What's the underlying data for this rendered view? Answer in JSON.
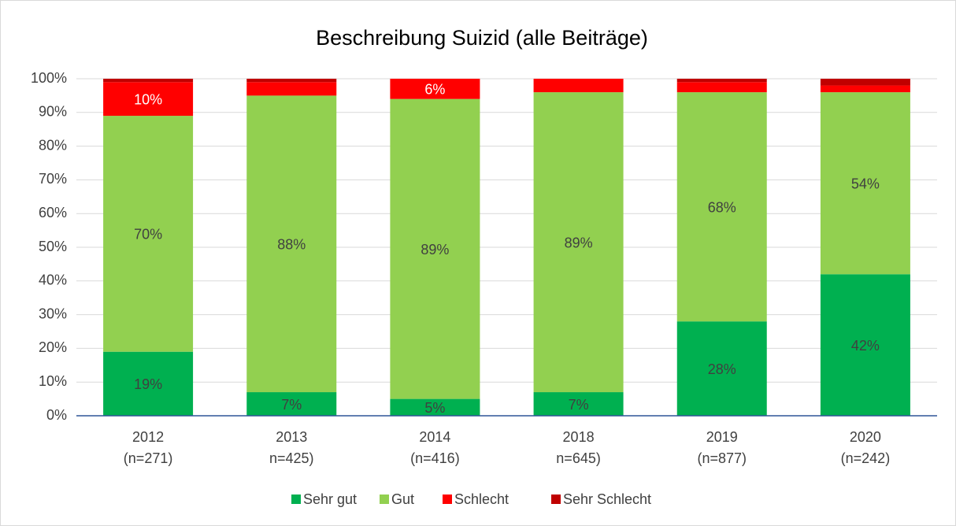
{
  "chart_data": {
    "type": "stacked_bar",
    "title": "Beschreibung Suizid (alle Beiträge)",
    "categories": [
      [
        "2012",
        "(n=271)"
      ],
      [
        "2013",
        "n=425)"
      ],
      [
        "2014",
        "(n=416)"
      ],
      [
        "2018",
        "n=645)"
      ],
      [
        "2019",
        "(n=877)"
      ],
      [
        "2020",
        "(n=242)"
      ]
    ],
    "series": [
      {
        "name": "Sehr gut",
        "color": "#00b050",
        "values": [
          19,
          7,
          5,
          7,
          28,
          42
        ],
        "value_labels": [
          "19%",
          "7%",
          "5%",
          "7%",
          "28%",
          "42%"
        ]
      },
      {
        "name": "Gut",
        "color": "#92d050",
        "values": [
          70,
          88,
          89,
          89,
          68,
          54
        ],
        "value_labels": [
          "70%",
          "88%",
          "89%",
          "89%",
          "68%",
          "54%"
        ]
      },
      {
        "name": "Schlecht",
        "color": "#ff0000",
        "values": [
          10,
          4,
          6,
          4,
          3,
          2
        ],
        "value_labels": [
          "10%",
          null,
          "6%",
          null,
          null,
          null
        ]
      },
      {
        "name": "Sehr Schlecht",
        "color": "#c00000",
        "values": [
          1,
          1,
          0,
          0,
          1,
          2
        ],
        "value_labels": [
          null,
          null,
          null,
          null,
          null,
          null
        ]
      }
    ],
    "ylim": [
      0,
      100
    ],
    "yticks": [
      {
        "value": 0,
        "label": "0%"
      },
      {
        "value": 10,
        "label": "10%"
      },
      {
        "value": 20,
        "label": "20%"
      },
      {
        "value": 30,
        "label": "30%"
      },
      {
        "value": 40,
        "label": "40%"
      },
      {
        "value": 50,
        "label": "50%"
      },
      {
        "value": 60,
        "label": "60%"
      },
      {
        "value": 70,
        "label": "70%"
      },
      {
        "value": 80,
        "label": "80%"
      },
      {
        "value": 90,
        "label": "90%"
      },
      {
        "value": 100,
        "label": "100%"
      }
    ],
    "grid": true,
    "legend": "bottom"
  }
}
